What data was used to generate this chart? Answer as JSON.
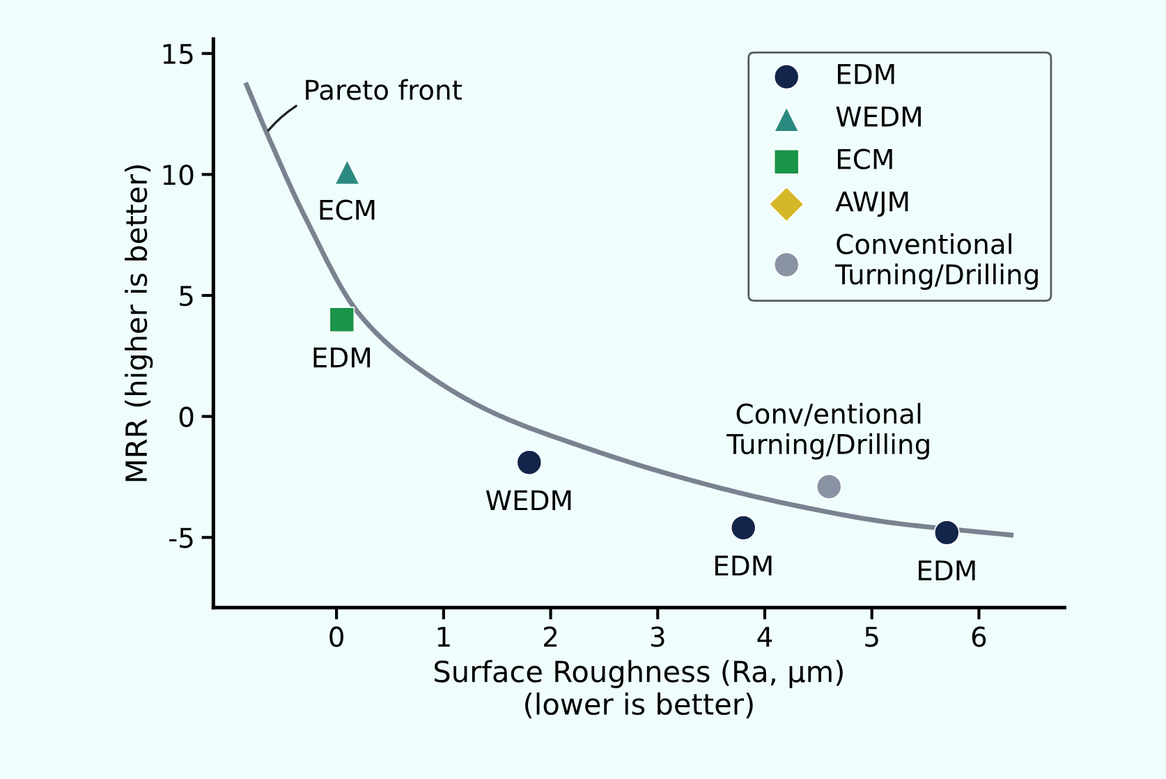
{
  "chart_data": {
    "type": "scatter",
    "xlabel": "Surface Roughness (Ra, µm)\n(lower is better)",
    "ylabel": "MRR (higher is better)",
    "xlim": [
      -1.15,
      6.8
    ],
    "ylim": [
      -7.9,
      15.6
    ],
    "xticks": [
      0,
      1,
      2,
      3,
      4,
      5,
      6
    ],
    "yticks": [
      -5,
      0,
      5,
      10,
      15
    ],
    "grid": false,
    "legend": "top right",
    "series": [
      {
        "name": "EDM",
        "color": "#13254a",
        "marker": "circle",
        "x": [
          1.8,
          3.8,
          5.7
        ],
        "values": [
          -1.9,
          -4.6,
          -4.8
        ]
      },
      {
        "name": "WEDM",
        "color": "#2a8a80",
        "marker": "triangle",
        "x": [
          0.1
        ],
        "values": [
          10.1
        ]
      },
      {
        "name": "ECM",
        "color": "#1a9448",
        "marker": "square",
        "x": [
          0.05
        ],
        "values": [
          4.0
        ]
      },
      {
        "name": "AWJM",
        "color": "#d4b82a",
        "marker": "diamond"
      },
      {
        "name": "Conventional\nTurning/Drilling",
        "color": "#8a93a3",
        "marker": "circle",
        "x": [
          4.6
        ],
        "values": [
          -2.9
        ]
      },
      {
        "type": "line",
        "color": "#7a8290",
        "marker": "none",
        "x": [
          -0.84,
          -0.63,
          -0.3,
          0.2,
          0.7,
          1.44,
          2.2,
          3.2,
          4.2,
          5.2,
          6.3
        ],
        "values": [
          13.7,
          11.5,
          8.3,
          4.3,
          2.2,
          0.2,
          -1.1,
          -2.5,
          -3.6,
          -4.4,
          -4.9
        ]
      }
    ],
    "annotations": [
      {
        "text": "Pareto front",
        "x": -0.66,
        "y": 11.7
      },
      {
        "text": "ECM",
        "x": 0.1,
        "y": 10.1
      },
      {
        "text": "EDM",
        "x": 0.05,
        "y": 4.0
      },
      {
        "text": "WEDM",
        "x": 1.8,
        "y": -1.9
      },
      {
        "text": "EDM",
        "x": 3.8,
        "y": -4.6
      },
      {
        "text": "EDM",
        "x": 5.7,
        "y": -4.8
      },
      {
        "text": "Conv/entional\nTurning/Drilling",
        "x": 4.6,
        "y": -2.9
      }
    ]
  }
}
